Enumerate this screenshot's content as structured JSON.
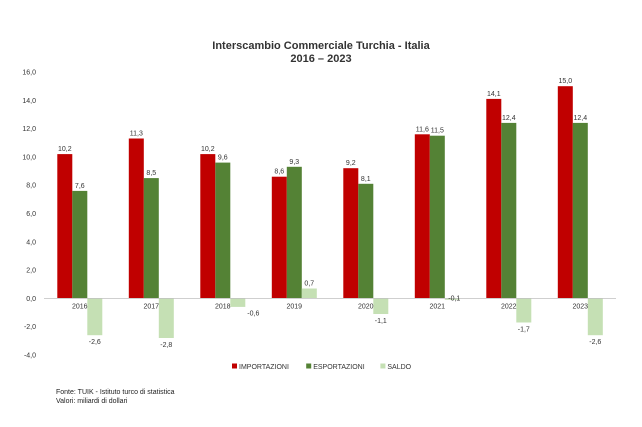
{
  "chart_data": {
    "type": "bar",
    "title": "Interscambio Commerciale Turchia - Italia",
    "subtitle": "2016 – 2023",
    "categories": [
      "2016",
      "2017",
      "2018",
      "2019",
      "2020",
      "2021",
      "2022",
      "2023"
    ],
    "series": [
      {
        "name": "IMPORTAZIONI",
        "color": "#c00000",
        "values": [
          10.2,
          11.3,
          10.2,
          8.6,
          9.2,
          11.6,
          14.1,
          15.0
        ],
        "labels": [
          "10,2",
          "11,3",
          "10,2",
          "8,6",
          "9,2",
          "11,6",
          "14,1",
          "15,0"
        ]
      },
      {
        "name": "ESPORTAZIONI",
        "color": "#548235",
        "values": [
          7.6,
          8.5,
          9.6,
          9.3,
          8.1,
          11.5,
          12.4,
          12.4
        ],
        "labels": [
          "7,6",
          "8,5",
          "9,6",
          "9,3",
          "8,1",
          "11,5",
          "12,4",
          "12,4"
        ]
      },
      {
        "name": "SALDO",
        "color": "#c5e0b4",
        "values": [
          -2.6,
          -2.8,
          -0.6,
          0.7,
          -1.1,
          -0.1,
          -1.7,
          -2.6
        ],
        "labels": [
          "-2,6",
          "-2,8",
          "-0,6",
          "0,7",
          "-1,1",
          "-0,1",
          "-1,7",
          "-2,6"
        ]
      }
    ],
    "ylim": [
      -4,
      16
    ],
    "yticks": [
      -4,
      -2,
      0,
      2,
      4,
      6,
      8,
      10,
      12,
      14,
      16
    ],
    "ytick_labels": [
      "-4,0",
      "-2,0",
      "0,0",
      "2,0",
      "4,0",
      "6,0",
      "8,0",
      "10,0",
      "12,0",
      "14,0",
      "16,0"
    ],
    "legend_position": "bottom",
    "grid": false
  },
  "footer": {
    "source": "Fonte: TUIK - Istituto turco di statistica",
    "unit": "Valori: miliardi di dollari"
  }
}
